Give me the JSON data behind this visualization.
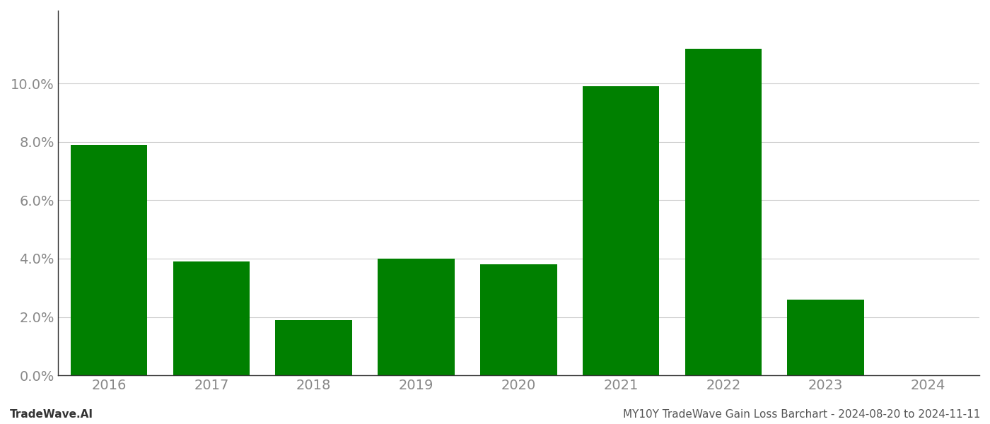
{
  "categories": [
    "2016",
    "2017",
    "2018",
    "2019",
    "2020",
    "2021",
    "2022",
    "2023",
    "2024"
  ],
  "values": [
    0.079,
    0.039,
    0.019,
    0.04,
    0.038,
    0.099,
    0.112,
    0.026,
    0.0
  ],
  "bar_color": "#008000",
  "background_color": "#ffffff",
  "grid_color": "#cccccc",
  "ylabel_color": "#888888",
  "xlabel_color": "#888888",
  "ylim": [
    0,
    0.125
  ],
  "yticks": [
    0.0,
    0.02,
    0.04,
    0.06,
    0.08,
    0.1
  ],
  "footer_left": "TradeWave.AI",
  "footer_right": "MY10Y TradeWave Gain Loss Barchart - 2024-08-20 to 2024-11-11",
  "footer_fontsize": 11,
  "tick_fontsize": 14,
  "bar_width": 0.75
}
